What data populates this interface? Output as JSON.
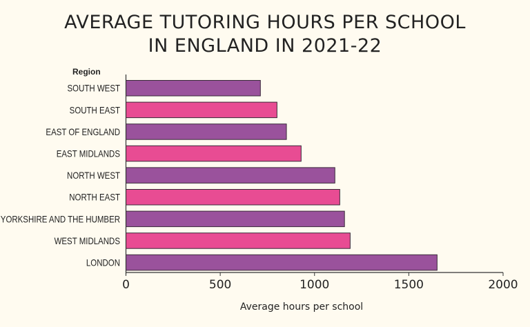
{
  "chart_data": {
    "type": "bar",
    "orientation": "horizontal",
    "title": "AVERAGE TUTORING HOURS PER SCHOOL IN ENGLAND IN 2021-22",
    "title_lines": [
      "AVERAGE TUTORING HOURS PER SCHOOL",
      "IN ENGLAND IN 2021-22"
    ],
    "ylabel": "Region",
    "xlabel": "Average hours per school",
    "categories": [
      "SOUTH WEST",
      "SOUTH EAST",
      "EAST OF ENGLAND",
      "EAST MIDLANDS",
      "NORTH WEST",
      "NORTH EAST",
      "YORKSHIRE AND THE HUMBER",
      "WEST MIDLANDS",
      "LONDON"
    ],
    "values": [
      713,
      801,
      851,
      929,
      1108,
      1134,
      1159,
      1189,
      1650
    ],
    "xlim": [
      0,
      2000
    ],
    "xticks": [
      "0",
      "500",
      "1000",
      "1500",
      "2000"
    ],
    "grid": false,
    "colors": [
      "#9a529c",
      "#e84c93"
    ]
  }
}
